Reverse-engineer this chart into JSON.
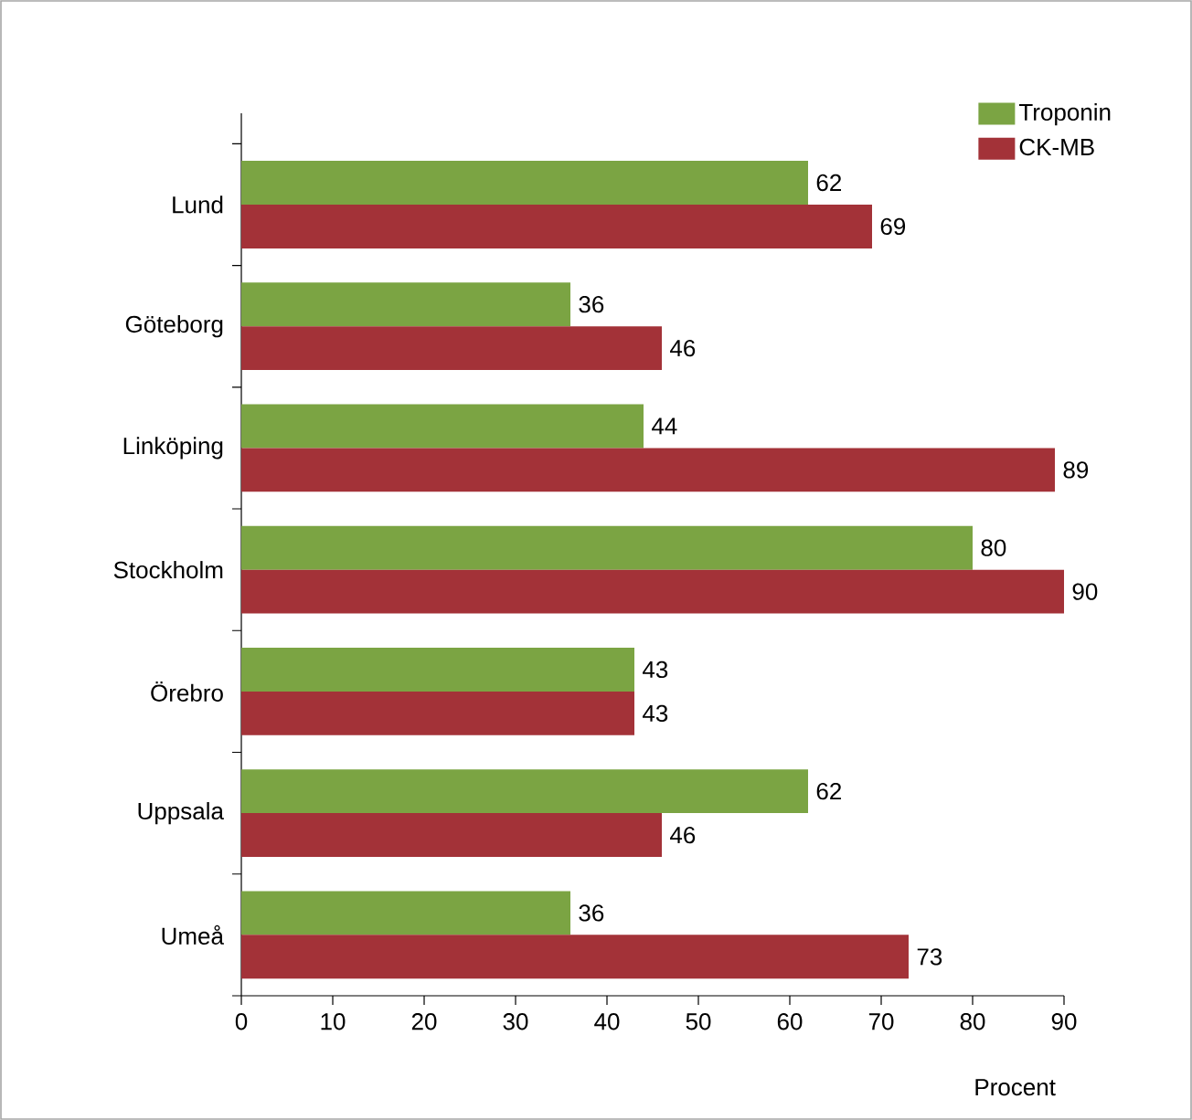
{
  "chart_data": {
    "type": "bar",
    "orientation": "horizontal",
    "xlabel": "Procent",
    "categories": [
      "Lund",
      "Göteborg",
      "Linköping",
      "Stockholm",
      "Örebro",
      "Uppsala",
      "Umeå"
    ],
    "series": [
      {
        "name": "Troponin",
        "color": "#7ba443",
        "values": [
          62,
          36,
          44,
          80,
          43,
          62,
          36
        ]
      },
      {
        "name": "CK-MB",
        "color": "#a33238",
        "values": [
          69,
          46,
          89,
          90,
          43,
          46,
          73
        ]
      }
    ],
    "xlim": [
      0,
      90
    ],
    "xticks": [
      0,
      10,
      20,
      30,
      40,
      50,
      60,
      70,
      80,
      90
    ],
    "data_labels": true,
    "legend": "top right",
    "grid": false
  }
}
